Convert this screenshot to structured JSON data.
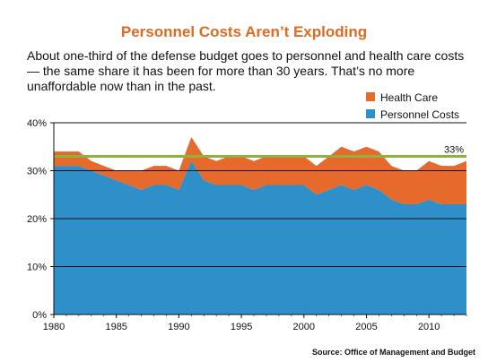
{
  "chart_data": {
    "type": "area",
    "title": "Personnel Costs Aren’t Exploding",
    "subtitle": "About one-third of the defense budget goes to personnel and health care costs — the same share it has been for more than 30 years. That’s no more unaffordable now than in the past.",
    "x": [
      1980,
      1981,
      1982,
      1983,
      1984,
      1985,
      1986,
      1987,
      1988,
      1989,
      1990,
      1991,
      1992,
      1993,
      1994,
      1995,
      1996,
      1997,
      1998,
      1999,
      2000,
      2001,
      2002,
      2003,
      2004,
      2005,
      2006,
      2007,
      2008,
      2009,
      2010,
      2011,
      2012,
      2013
    ],
    "series": [
      {
        "name": "Personnel Costs",
        "color": "#2e8fc9",
        "values": [
          31,
          31,
          31,
          30,
          29,
          28,
          27,
          26,
          27,
          27,
          26,
          32,
          28,
          27,
          27,
          27,
          26,
          27,
          27,
          27,
          27,
          25,
          26,
          27,
          26,
          27,
          26,
          24,
          23,
          23,
          24,
          23,
          23,
          23
        ]
      },
      {
        "name": "Health Care",
        "color": "#e56a2c",
        "values": [
          3,
          3,
          3,
          2,
          2,
          2,
          3,
          4,
          4,
          4,
          4,
          5,
          5,
          5,
          6,
          6,
          6,
          6,
          6,
          6,
          6,
          6,
          7,
          8,
          8,
          8,
          8,
          7,
          7,
          7,
          8,
          8,
          8,
          9
        ]
      }
    ],
    "stacked": true,
    "reference_line": {
      "value": 33,
      "label": "33%",
      "color": "#8fb33a"
    },
    "ylim": [
      0,
      40
    ],
    "yticks": [
      "0%",
      "10%",
      "20%",
      "30%",
      "40%"
    ],
    "ytick_values": [
      0,
      10,
      20,
      30,
      40
    ],
    "xticks": [
      "1980",
      "1985",
      "1990",
      "1995",
      "2000",
      "2005",
      "2010"
    ],
    "xtick_values": [
      1980,
      1985,
      1990,
      1995,
      2000,
      2005,
      2010
    ],
    "xlim": [
      1980,
      2013
    ],
    "grid": true,
    "legend_position": "top-right",
    "source": "Source: Office of Management and Budget"
  }
}
